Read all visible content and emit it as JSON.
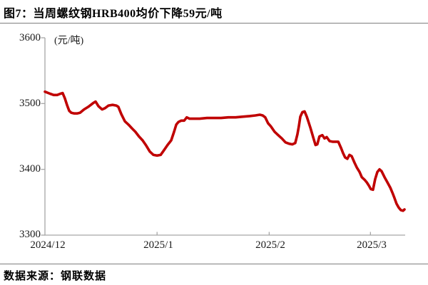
{
  "page": {
    "title": "图7：当周螺纹钢HRB400均价下降59元/吨",
    "source": "数据来源：钢联数据"
  },
  "chart_data": {
    "type": "line",
    "title": "图7：当周螺纹钢HRB400均价下降59元/吨",
    "unit_label": "(元/吨)",
    "ylabel": "元/吨",
    "ylim": [
      3300,
      3600
    ],
    "y_ticks": [
      3600,
      3500,
      3400,
      3300
    ],
    "y_tick_labels": [
      "3600",
      "3500",
      "3400",
      "3300"
    ],
    "x_tick_labels": [
      "2024/12",
      "2025/1",
      "2025/2",
      "2025/3"
    ],
    "x_tick_days": [
      0,
      31,
      62,
      90
    ],
    "xlim_days": [
      0,
      99.6
    ],
    "x_unit": "days since 2024/12/01",
    "grid": false,
    "legend": "none",
    "line_color": "#C00000",
    "axis_color": "#A6A6A6",
    "points": [
      [
        0,
        3518
      ],
      [
        1.4,
        3515
      ],
      [
        2.4,
        3513
      ],
      [
        3.4,
        3513
      ],
      [
        4.3,
        3515
      ],
      [
        4.9,
        3516
      ],
      [
        5.5,
        3508
      ],
      [
        6.1,
        3498
      ],
      [
        6.7,
        3489
      ],
      [
        7.3,
        3486
      ],
      [
        8.1,
        3485
      ],
      [
        8.9,
        3485
      ],
      [
        9.7,
        3486
      ],
      [
        10.8,
        3491
      ],
      [
        12,
        3495
      ],
      [
        13.4,
        3501
      ],
      [
        14,
        3503
      ],
      [
        14.8,
        3496
      ],
      [
        15.8,
        3491
      ],
      [
        16.6,
        3493
      ],
      [
        17.6,
        3497
      ],
      [
        18.7,
        3498
      ],
      [
        19.7,
        3497
      ],
      [
        20.3,
        3495
      ],
      [
        21.1,
        3484
      ],
      [
        22.1,
        3473
      ],
      [
        23.1,
        3468
      ],
      [
        24.1,
        3462
      ],
      [
        25,
        3457
      ],
      [
        26,
        3450
      ],
      [
        27,
        3444
      ],
      [
        28,
        3436
      ],
      [
        29,
        3427
      ],
      [
        30,
        3422
      ],
      [
        31,
        3421
      ],
      [
        32,
        3422
      ],
      [
        32.9,
        3429
      ],
      [
        33.9,
        3437
      ],
      [
        34.9,
        3444
      ],
      [
        35.7,
        3457
      ],
      [
        36.3,
        3468
      ],
      [
        36.9,
        3472
      ],
      [
        37.7,
        3474
      ],
      [
        38.5,
        3474
      ],
      [
        39.2,
        3479
      ],
      [
        40,
        3477
      ],
      [
        41.2,
        3477
      ],
      [
        42.8,
        3477
      ],
      [
        44.8,
        3478
      ],
      [
        46.7,
        3478
      ],
      [
        48.7,
        3478
      ],
      [
        50.7,
        3479
      ],
      [
        52.7,
        3479
      ],
      [
        54.6,
        3480
      ],
      [
        56.6,
        3481
      ],
      [
        58.2,
        3482
      ],
      [
        59.4,
        3483
      ],
      [
        60.2,
        3482
      ],
      [
        60.9,
        3479
      ],
      [
        61.7,
        3470
      ],
      [
        62.5,
        3465
      ],
      [
        63.5,
        3457
      ],
      [
        64.5,
        3452
      ],
      [
        65.5,
        3447
      ],
      [
        66.5,
        3441
      ],
      [
        67.5,
        3439
      ],
      [
        68.4,
        3438
      ],
      [
        69.2,
        3440
      ],
      [
        69.8,
        3453
      ],
      [
        70.2,
        3465
      ],
      [
        70.6,
        3480
      ],
      [
        71.2,
        3487
      ],
      [
        71.8,
        3488
      ],
      [
        72.4,
        3480
      ],
      [
        73.4,
        3463
      ],
      [
        74.2,
        3448
      ],
      [
        74.8,
        3437
      ],
      [
        75.3,
        3438
      ],
      [
        75.9,
        3450
      ],
      [
        76.7,
        3452
      ],
      [
        77.3,
        3447
      ],
      [
        77.9,
        3449
      ],
      [
        78.7,
        3443
      ],
      [
        79.5,
        3442
      ],
      [
        80.3,
        3442
      ],
      [
        81.1,
        3442
      ],
      [
        81.9,
        3432
      ],
      [
        82.4,
        3425
      ],
      [
        83,
        3418
      ],
      [
        83.6,
        3416
      ],
      [
        84.2,
        3422
      ],
      [
        84.8,
        3420
      ],
      [
        85.6,
        3410
      ],
      [
        86.2,
        3403
      ],
      [
        87,
        3396
      ],
      [
        87.6,
        3388
      ],
      [
        88.4,
        3384
      ],
      [
        89,
        3380
      ],
      [
        89.6,
        3375
      ],
      [
        90.1,
        3370
      ],
      [
        90.7,
        3369
      ],
      [
        91.3,
        3385
      ],
      [
        91.9,
        3396
      ],
      [
        92.5,
        3400
      ],
      [
        93.1,
        3397
      ],
      [
        93.9,
        3388
      ],
      [
        94.7,
        3380
      ],
      [
        95.5,
        3372
      ],
      [
        96.1,
        3364
      ],
      [
        96.6,
        3357
      ],
      [
        97.2,
        3348
      ],
      [
        97.8,
        3342
      ],
      [
        98.4,
        3338
      ],
      [
        99,
        3337
      ],
      [
        99.4,
        3339
      ]
    ]
  }
}
